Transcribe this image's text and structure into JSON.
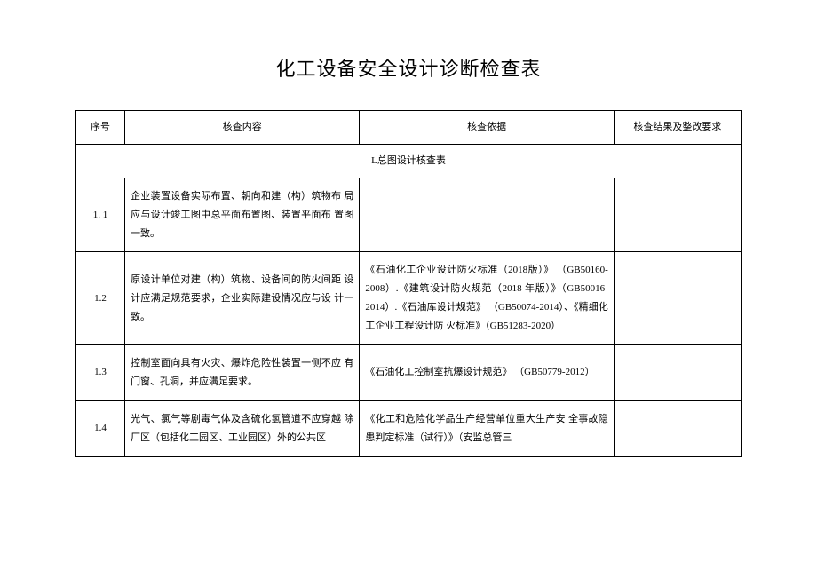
{
  "title": "化工设备安全设计诊断检查表",
  "columns": {
    "num": "序号",
    "content": "核查内容",
    "basis": "核查依据",
    "result": "核查结果及整改要求"
  },
  "section": "L总图设计核查表",
  "rows": [
    {
      "num": "1. 1",
      "content": "企业装置设备实际布置、朝向和建（构）筑物布 局应与设计竣工图中总平面布置图、装置平面布 置图一致。",
      "basis": "",
      "result": ""
    },
    {
      "num": "1.2",
      "content": "原设计单位对建（构）筑物、设备间的防火间距 设计应满足规范要求，企业实际建设情况应与设 计一致。",
      "basis": "《石油化工企业设计防火标准（2018版）》 （GB50160-2008）.《建筑设计防火规范（2018 年版）》（GB50016-2014）.《石油库设计规范》 （GB50074-2014）、《精细化工企业工程设计防 火标准》（GB51283-2020）",
      "result": ""
    },
    {
      "num": "1.3",
      "content": "控制室面向具有火灾、爆炸危险性装置一侧不应 有门窗、孔洞，并应满足要求。",
      "basis": "《石油化工控制室抗爆设计规范》 （GB50779-2012）",
      "result": ""
    },
    {
      "num": "1.4",
      "content": "光气、氯气等剧毒气体及含硫化氢管道不应穿越 除厂区（包括化工园区、工业园区）外的公共区",
      "basis": "《化工和危险化学品生产经营单位重大生产安 全事故隐患判定标准（试行）》（安监总管三",
      "result": ""
    }
  ]
}
